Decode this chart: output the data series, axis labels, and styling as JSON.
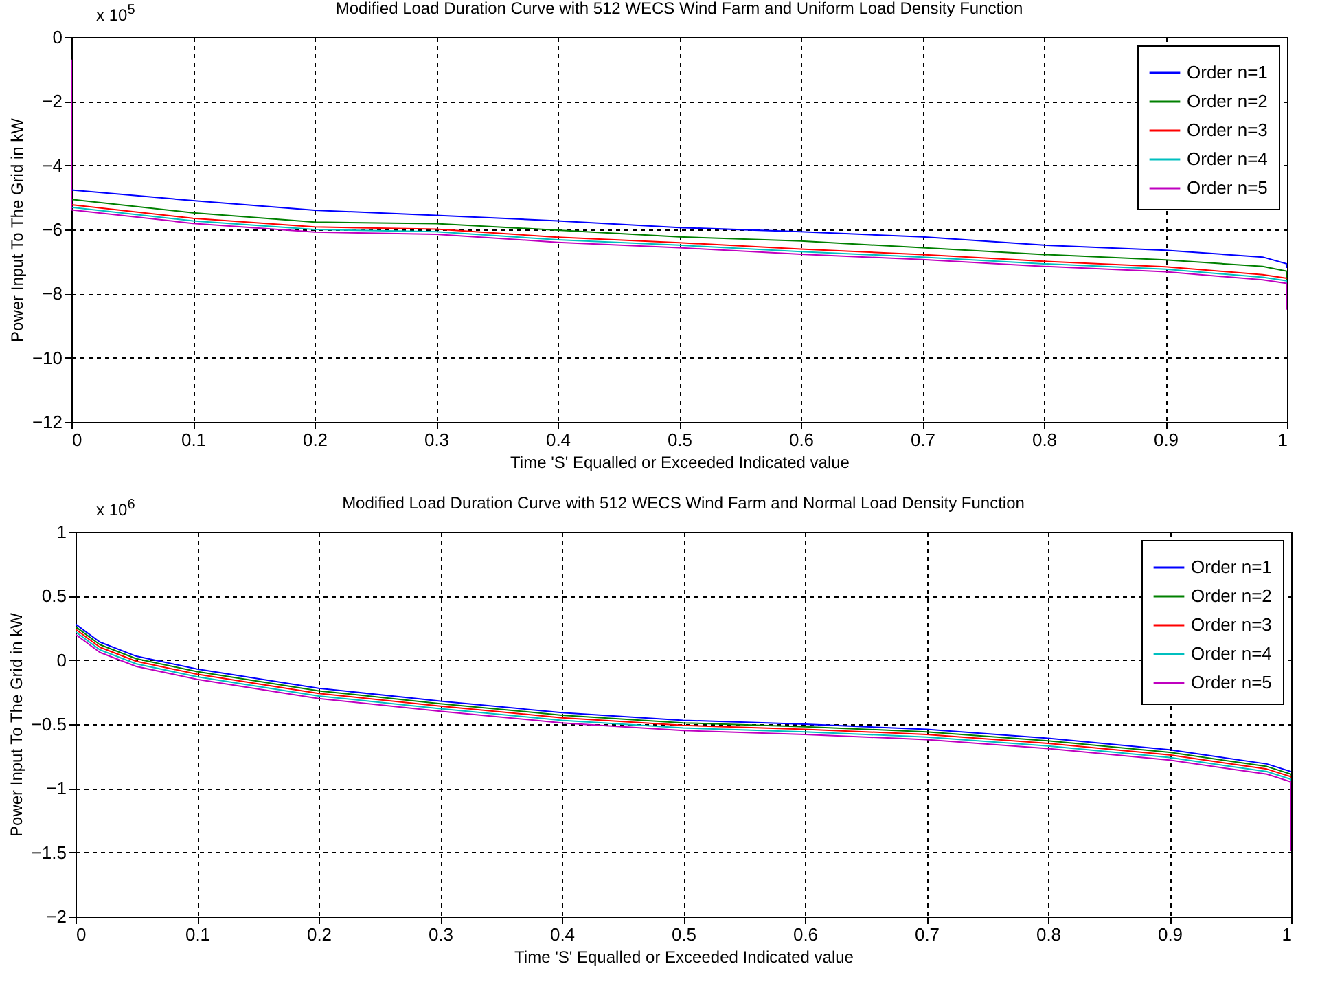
{
  "chart_data": [
    {
      "type": "line",
      "title": "Modified Load Duration Curve with 512 WECS Wind Farm and Uniform Load Density Function",
      "xlabel": "Time 'S' Equalled or Exceeded Indicated value",
      "ylabel": "Power Input To The Grid in kW",
      "annotations": [
        "x 10$^{5}$"
      ],
      "xlim": [
        0,
        1
      ],
      "xticks": [
        0,
        0.1,
        0.2,
        0.3,
        0.4,
        0.5,
        0.6,
        0.7,
        0.8,
        0.9,
        1
      ],
      "ylim": [
        -12,
        0
      ],
      "yticks": [
        -12,
        -10,
        -8,
        -6,
        -4,
        -2,
        0
      ],
      "grid": true,
      "legend": "top right",
      "line_style": "solid",
      "series": [
        {
          "name": "Order n=1",
          "color": "#0000ff",
          "x": [
            0,
            0.1,
            0.2,
            0.3,
            0.4,
            0.5,
            0.6,
            0.7,
            0.8,
            0.9,
            0.98,
            1,
            1
          ],
          "values": [
            -4.77,
            -5.1,
            -5.4,
            -5.56,
            -5.73,
            -5.94,
            -6.07,
            -6.23,
            -6.49,
            -6.65,
            -6.86,
            -7.07,
            -7.2
          ]
        },
        {
          "name": "Order n=2",
          "color": "#008000",
          "x": [
            0,
            0.1,
            0.2,
            0.3,
            0.4,
            0.5,
            0.6,
            0.7,
            0.8,
            0.9,
            0.98,
            1,
            1
          ],
          "values": [
            -5.06,
            -5.48,
            -5.77,
            -5.82,
            -6.02,
            -6.23,
            -6.36,
            -6.57,
            -6.78,
            -6.95,
            -7.15,
            -7.3,
            -7.65
          ]
        },
        {
          "name": "Order n=3",
          "color": "#ff0000",
          "x": [
            0,
            0.1,
            0.2,
            0.3,
            0.4,
            0.5,
            0.6,
            0.7,
            0.8,
            0.9,
            0.98,
            1,
            1
          ],
          "values": [
            -5.23,
            -5.65,
            -5.92,
            -5.99,
            -6.24,
            -6.41,
            -6.61,
            -6.78,
            -6.99,
            -7.16,
            -7.41,
            -7.52,
            -7.52
          ]
        },
        {
          "name": "Order n=4",
          "color": "#00bfbf",
          "x": [
            0,
            0.1,
            0.2,
            0.3,
            0.4,
            0.5,
            0.6,
            0.7,
            0.8,
            0.9,
            0.98,
            1,
            1
          ],
          "values": [
            -5.31,
            -5.73,
            -6.0,
            -6.07,
            -6.32,
            -6.49,
            -6.69,
            -6.86,
            -7.07,
            -7.24,
            -7.49,
            -7.6,
            -7.7
          ]
        },
        {
          "name": "Order n=5",
          "color": "#bf00bf",
          "x": [
            0,
            0,
            0.1,
            0.2,
            0.3,
            0.4,
            0.5,
            0.6,
            0.7,
            0.8,
            0.9,
            0.98,
            1,
            1
          ],
          "values": [
            -0.7,
            -5.39,
            -5.81,
            -6.08,
            -6.15,
            -6.4,
            -6.57,
            -6.77,
            -6.94,
            -7.15,
            -7.32,
            -7.57,
            -7.68,
            -8.5
          ]
        }
      ]
    },
    {
      "type": "line",
      "title": "Modified Load Duration Curve with 512 WECS Wind Farm and Normal Load Density Function",
      "xlabel": "Time 'S' Equalled or Exceeded Indicated value",
      "ylabel": "Power Input To The Grid in kW",
      "annotations": [
        "x 10$^{6}$"
      ],
      "xlim": [
        0,
        1
      ],
      "xticks": [
        0,
        0.1,
        0.2,
        0.3,
        0.4,
        0.5,
        0.6,
        0.7,
        0.8,
        0.9,
        1
      ],
      "ylim": [
        -2,
        1
      ],
      "yticks": [
        -2,
        -1.5,
        -1,
        -0.5,
        0,
        0.5,
        1
      ],
      "grid": true,
      "legend": "top right",
      "line_style": "solid",
      "series": [
        {
          "name": "Order n=1",
          "color": "#0000ff",
          "x": [
            0,
            0.02,
            0.05,
            0.1,
            0.2,
            0.3,
            0.4,
            0.5,
            0.6,
            0.7,
            0.8,
            0.9,
            0.98,
            1,
            1
          ],
          "values": [
            0.28,
            0.14,
            0.03,
            -0.07,
            -0.22,
            -0.32,
            -0.41,
            -0.47,
            -0.5,
            -0.54,
            -0.61,
            -0.7,
            -0.81,
            -0.87,
            -0.87
          ]
        },
        {
          "name": "Order n=2",
          "color": "#008000",
          "x": [
            0,
            0.02,
            0.05,
            0.1,
            0.2,
            0.3,
            0.4,
            0.5,
            0.6,
            0.7,
            0.8,
            0.9,
            0.98,
            1,
            1
          ],
          "values": [
            0.26,
            0.12,
            0.01,
            -0.09,
            -0.24,
            -0.34,
            -0.43,
            -0.49,
            -0.52,
            -0.56,
            -0.63,
            -0.72,
            -0.83,
            -0.89,
            -0.9
          ]
        },
        {
          "name": "Order n=3",
          "color": "#ff0000",
          "x": [
            0,
            0.02,
            0.05,
            0.1,
            0.2,
            0.3,
            0.4,
            0.5,
            0.6,
            0.7,
            0.8,
            0.9,
            0.98,
            1,
            1
          ],
          "values": [
            0.24,
            0.1,
            -0.01,
            -0.11,
            -0.26,
            -0.36,
            -0.45,
            -0.51,
            -0.54,
            -0.58,
            -0.65,
            -0.74,
            -0.85,
            -0.91,
            -0.92
          ]
        },
        {
          "name": "Order n=4",
          "color": "#00bfbf",
          "x": [
            0,
            0,
            0.02,
            0.05,
            0.1,
            0.2,
            0.3,
            0.4,
            0.5,
            0.6,
            0.7,
            0.8,
            0.9,
            0.98,
            1,
            1
          ],
          "values": [
            0.76,
            0.22,
            0.08,
            -0.03,
            -0.13,
            -0.28,
            -0.38,
            -0.47,
            -0.53,
            -0.56,
            -0.6,
            -0.67,
            -0.76,
            -0.87,
            -0.93,
            -0.94
          ]
        },
        {
          "name": "Order n=5",
          "color": "#bf00bf",
          "x": [
            0,
            0.02,
            0.05,
            0.1,
            0.2,
            0.3,
            0.4,
            0.5,
            0.6,
            0.7,
            0.8,
            0.9,
            0.98,
            1,
            1
          ],
          "values": [
            0.2,
            0.06,
            -0.05,
            -0.15,
            -0.3,
            -0.4,
            -0.49,
            -0.55,
            -0.58,
            -0.62,
            -0.69,
            -0.78,
            -0.89,
            -0.95,
            -1.49
          ]
        }
      ]
    }
  ]
}
